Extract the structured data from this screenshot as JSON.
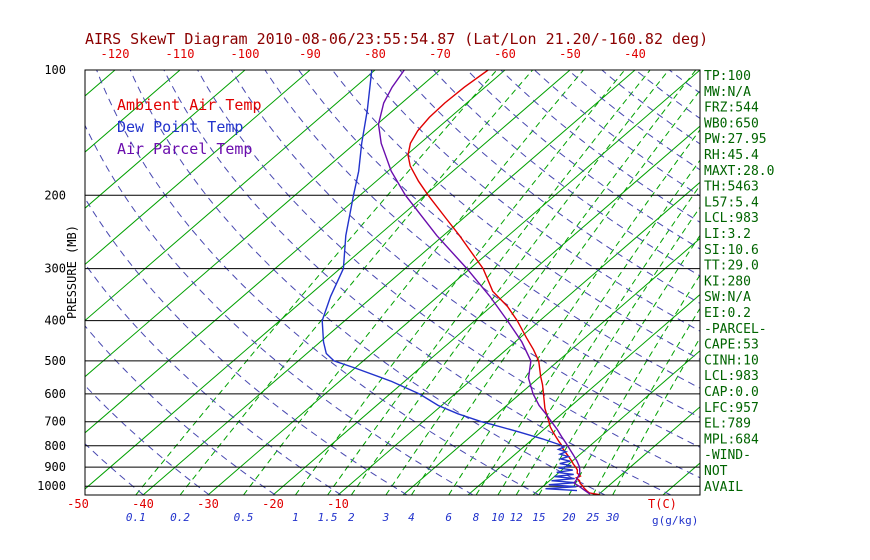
{
  "title": "AIRS SkewT Diagram 2010-08-06/23:55:54.87 (Lat/Lon 21.20/-160.82 deg)",
  "colors": {
    "title": "#8b0000",
    "frame": "#000000",
    "isotherm": "#00a000",
    "mixing_ratio": "#00a000",
    "dry_adiabat": "#4848b0",
    "top_axis": "#e00000",
    "bottom_temp": "#e00000",
    "mixratio_label": "#2233cc",
    "stats": "#006400"
  },
  "legend": [
    {
      "label": "Ambient Air Temp",
      "color": "#e00000"
    },
    {
      "label": "Dew Point Temp",
      "color": "#2233cc"
    },
    {
      "label": "Air Parcel Temp",
      "color": "#6a0dad"
    }
  ],
  "left_axis": {
    "label": "PRESSURE (MB)",
    "ticks": [
      100,
      200,
      300,
      400,
      500,
      600,
      700,
      800,
      900,
      1000
    ]
  },
  "top_axis": {
    "ticks": [
      -120,
      -110,
      -100,
      -90,
      -80,
      -70,
      -60,
      -50,
      -40
    ]
  },
  "bottom_axis": {
    "temp_ticks": [
      -50,
      -40,
      -30,
      -20,
      -10
    ],
    "temp_unit": "T(C)",
    "mixratio_unit": "g(g/kg)"
  },
  "stats_panel": {
    "lines": [
      "TP:100",
      "MW:N/A",
      "FRZ:544",
      "WB0:650",
      "PW:27.95",
      "RH:45.4",
      "MAXT:28.0",
      "TH:5463",
      "L57:5.4",
      "LCL:983",
      "LI:3.2",
      "SI:10.6",
      "TT:29.0",
      "KI:280",
      "SW:N/A",
      "EI:0.2",
      "-PARCEL-",
      "CAPE:53",
      "CINH:10",
      "LCL:983",
      "CAP:0.0",
      "LFC:957",
      "EL:789",
      "MPL:684",
      "-WIND-",
      "NOT",
      "AVAIL"
    ]
  },
  "chart_data": {
    "type": "line",
    "subtype": "skew-t-log-p",
    "pressure_range_mb": [
      100,
      1050
    ],
    "temp_range_at_top_c": [
      -120,
      -40
    ],
    "isotherms": {
      "min": -120,
      "max": 40,
      "step": 10
    },
    "dry_adiabats_theta_k": {
      "min": 220,
      "max": 470,
      "step": 10
    },
    "mixing_ratio_lines": [
      0.1,
      0.2,
      0.5,
      1,
      1.5,
      2,
      3,
      4,
      6,
      8,
      10,
      12,
      15,
      20,
      25,
      30
    ],
    "series": [
      {
        "name": "Ambient Air Temp",
        "color": "#e00000",
        "points": [
          [
            1049,
            30.3
          ],
          [
            1038,
            28.3
          ],
          [
            1027,
            27.6
          ],
          [
            1010,
            26.6
          ],
          [
            1000,
            26.1
          ],
          [
            985,
            25.2
          ],
          [
            970,
            24.6
          ],
          [
            955,
            23.6
          ],
          [
            945,
            23.9
          ],
          [
            930,
            22.9
          ],
          [
            915,
            22.4
          ],
          [
            900,
            21.6
          ],
          [
            885,
            20.7
          ],
          [
            870,
            19.9
          ],
          [
            855,
            19.0
          ],
          [
            840,
            18.1
          ],
          [
            825,
            17.1
          ],
          [
            810,
            16.2
          ],
          [
            795,
            15.4
          ],
          [
            780,
            14.4
          ],
          [
            760,
            13.1
          ],
          [
            740,
            11.8
          ],
          [
            720,
            10.5
          ],
          [
            700,
            9.4
          ],
          [
            650,
            6.4
          ],
          [
            600,
            3.6
          ],
          [
            570,
            1.8
          ],
          [
            544,
            0.0
          ],
          [
            520,
            -1.6
          ],
          [
            500,
            -3.0
          ],
          [
            470,
            -5.8
          ],
          [
            440,
            -9.0
          ],
          [
            400,
            -13.5
          ],
          [
            370,
            -17.5
          ],
          [
            340,
            -22.5
          ],
          [
            300,
            -28.0
          ],
          [
            270,
            -33.5
          ],
          [
            250,
            -37.5
          ],
          [
            230,
            -42.0
          ],
          [
            200,
            -49.5
          ],
          [
            185,
            -53.5
          ],
          [
            170,
            -57.5
          ],
          [
            160,
            -59.8
          ],
          [
            150,
            -61.5
          ],
          [
            140,
            -62.6
          ],
          [
            130,
            -63.2
          ],
          [
            120,
            -63.4
          ],
          [
            110,
            -63.2
          ],
          [
            100,
            -62.6
          ]
        ]
      },
      {
        "name": "Dew Point Temp",
        "color": "#2233cc",
        "points": [
          [
            1025,
            26.0
          ],
          [
            1014,
            20.8
          ],
          [
            1003,
            25.2
          ],
          [
            992,
            20.6
          ],
          [
            981,
            24.4
          ],
          [
            970,
            20.3
          ],
          [
            959,
            23.5
          ],
          [
            948,
            20.0
          ],
          [
            937,
            22.6
          ],
          [
            926,
            19.6
          ],
          [
            915,
            21.7
          ],
          [
            904,
            19.1
          ],
          [
            893,
            20.7
          ],
          [
            882,
            18.5
          ],
          [
            871,
            19.7
          ],
          [
            860,
            17.8
          ],
          [
            849,
            18.6
          ],
          [
            838,
            16.9
          ],
          [
            827,
            17.4
          ],
          [
            816,
            15.8
          ],
          [
            805,
            16.2
          ],
          [
            794,
            15.0
          ],
          [
            770,
            11.5
          ],
          [
            740,
            6.5
          ],
          [
            710,
            1.0
          ],
          [
            700,
            -1.0
          ],
          [
            670,
            -6.0
          ],
          [
            640,
            -10.5
          ],
          [
            600,
            -15.5
          ],
          [
            560,
            -22.0
          ],
          [
            520,
            -30.0
          ],
          [
            500,
            -34.5
          ],
          [
            480,
            -37.0
          ],
          [
            450,
            -39.5
          ],
          [
            400,
            -43.5
          ],
          [
            350,
            -46.5
          ],
          [
            300,
            -49.5
          ],
          [
            250,
            -55.0
          ],
          [
            200,
            -61.0
          ],
          [
            175,
            -64.5
          ],
          [
            150,
            -69.0
          ],
          [
            125,
            -74.0
          ],
          [
            100,
            -80.5
          ]
        ]
      },
      {
        "name": "Air Parcel Temp",
        "color": "#6a0dad",
        "points": [
          [
            1045,
            28.6
          ],
          [
            1020,
            26.9
          ],
          [
            1000,
            25.5
          ],
          [
            983,
            24.2
          ],
          [
            960,
            23.9
          ],
          [
            930,
            23.3
          ],
          [
            900,
            22.2
          ],
          [
            870,
            20.7
          ],
          [
            840,
            19.0
          ],
          [
            810,
            17.2
          ],
          [
            789,
            15.9
          ],
          [
            760,
            14.0
          ],
          [
            730,
            12.0
          ],
          [
            700,
            9.8
          ],
          [
            670,
            7.5
          ],
          [
            640,
            5.0
          ],
          [
            600,
            2.0
          ],
          [
            550,
            -1.5
          ],
          [
            500,
            -4.2
          ],
          [
            450,
            -9.0
          ],
          [
            400,
            -15.0
          ],
          [
            350,
            -22.0
          ],
          [
            300,
            -30.5
          ],
          [
            250,
            -41.0
          ],
          [
            200,
            -53.0
          ],
          [
            175,
            -59.5
          ],
          [
            150,
            -66.0
          ],
          [
            135,
            -69.8
          ],
          [
            120,
            -72.8
          ],
          [
            110,
            -74.3
          ],
          [
            100,
            -75.5
          ]
        ]
      }
    ]
  }
}
